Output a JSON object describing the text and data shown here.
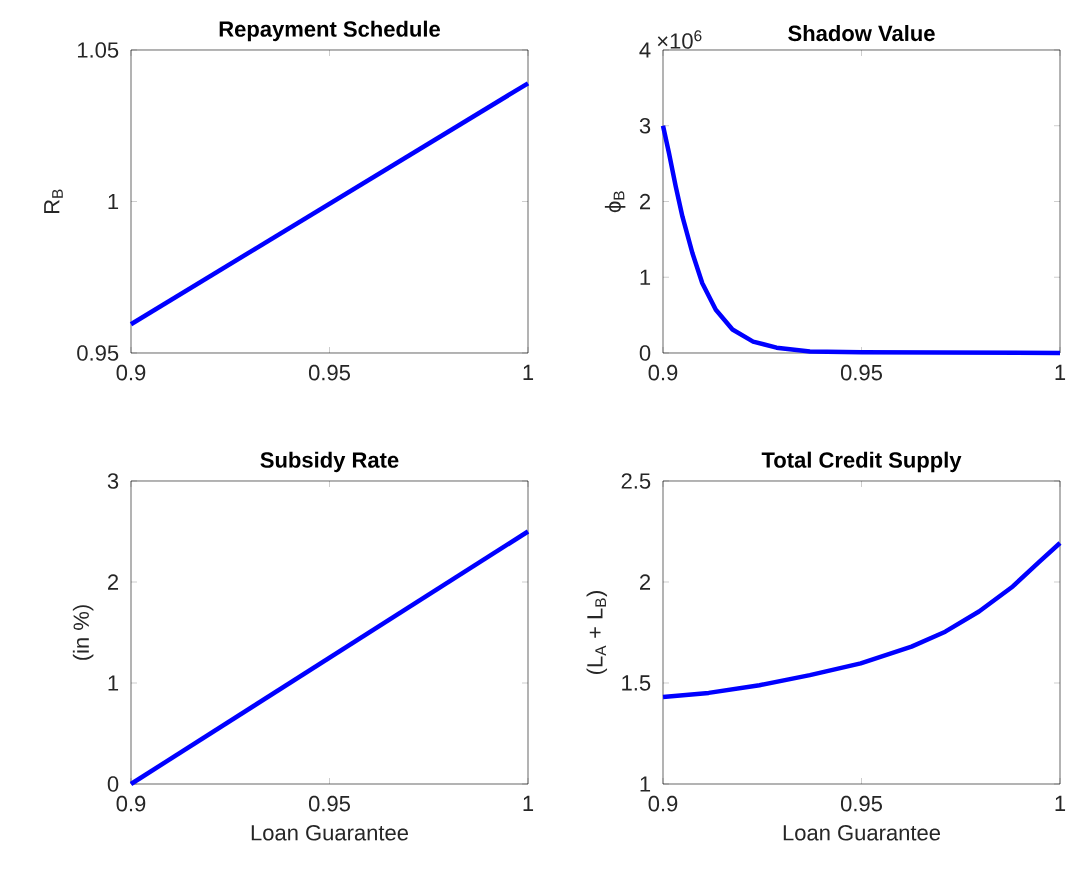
{
  "chart_data": [
    {
      "type": "line",
      "title": "Repayment Schedule",
      "ylabel": "R$_{B}$",
      "x": [
        0.9,
        1.0
      ],
      "values": [
        0.9595,
        1.039
      ],
      "color": "#0000ff",
      "xlim": [
        0.9,
        1.0
      ],
      "ylim": [
        0.95,
        1.05
      ],
      "xticks": [
        0.9,
        0.95,
        1
      ],
      "yticks": [
        0.95,
        1,
        1.05
      ]
    },
    {
      "type": "line",
      "title": "Shadow Value",
      "ylabel": "ϕ$_{B}$",
      "annotations": [
        "×10$^{6}$"
      ],
      "x": [
        0.9,
        0.9015,
        0.9032,
        0.9049,
        0.9074,
        0.9099,
        0.9133,
        0.9175,
        0.9227,
        0.9286,
        0.937,
        0.95,
        1.0
      ],
      "values": [
        3.0,
        2.64,
        2.2,
        1.8,
        1.32,
        0.92,
        0.57,
        0.31,
        0.15,
        0.07,
        0.02,
        0.01,
        0
      ],
      "color": "#0000ff",
      "xlim": [
        0.9,
        1.0
      ],
      "ylim": [
        0,
        4
      ],
      "xticks": [
        0.9,
        0.95,
        1
      ],
      "yticks": [
        0,
        1,
        2,
        3,
        4
      ]
    },
    {
      "type": "line",
      "title": "Subsidy Rate",
      "xlabel": "Loan Guarantee",
      "ylabel": "(in %)",
      "x": [
        0.9,
        1.0
      ],
      "values": [
        0,
        2.5
      ],
      "color": "#0000ff",
      "xlim": [
        0.9,
        1.0
      ],
      "ylim": [
        0,
        3
      ],
      "xticks": [
        0.9,
        0.95,
        1
      ],
      "yticks": [
        0,
        1,
        2,
        3
      ]
    },
    {
      "type": "line",
      "title": "Total Credit Supply",
      "xlabel": "Loan Guarantee",
      "ylabel": "(L$_{A}$ + L$_{B}$)",
      "x": [
        0.9,
        0.9115,
        0.9243,
        0.937,
        0.9498,
        0.9626,
        0.9711,
        0.9796,
        0.9881,
        0.9949,
        1.0
      ],
      "values": [
        1.431,
        1.451,
        1.489,
        1.539,
        1.597,
        1.68,
        1.754,
        1.854,
        1.978,
        2.102,
        2.193
      ],
      "color": "#0000ff",
      "xlim": [
        0.9,
        1.0
      ],
      "ylim": [
        1,
        2.5
      ],
      "xticks": [
        0.9,
        0.95,
        1
      ],
      "yticks": [
        1,
        1.5,
        2,
        2.5
      ]
    }
  ]
}
